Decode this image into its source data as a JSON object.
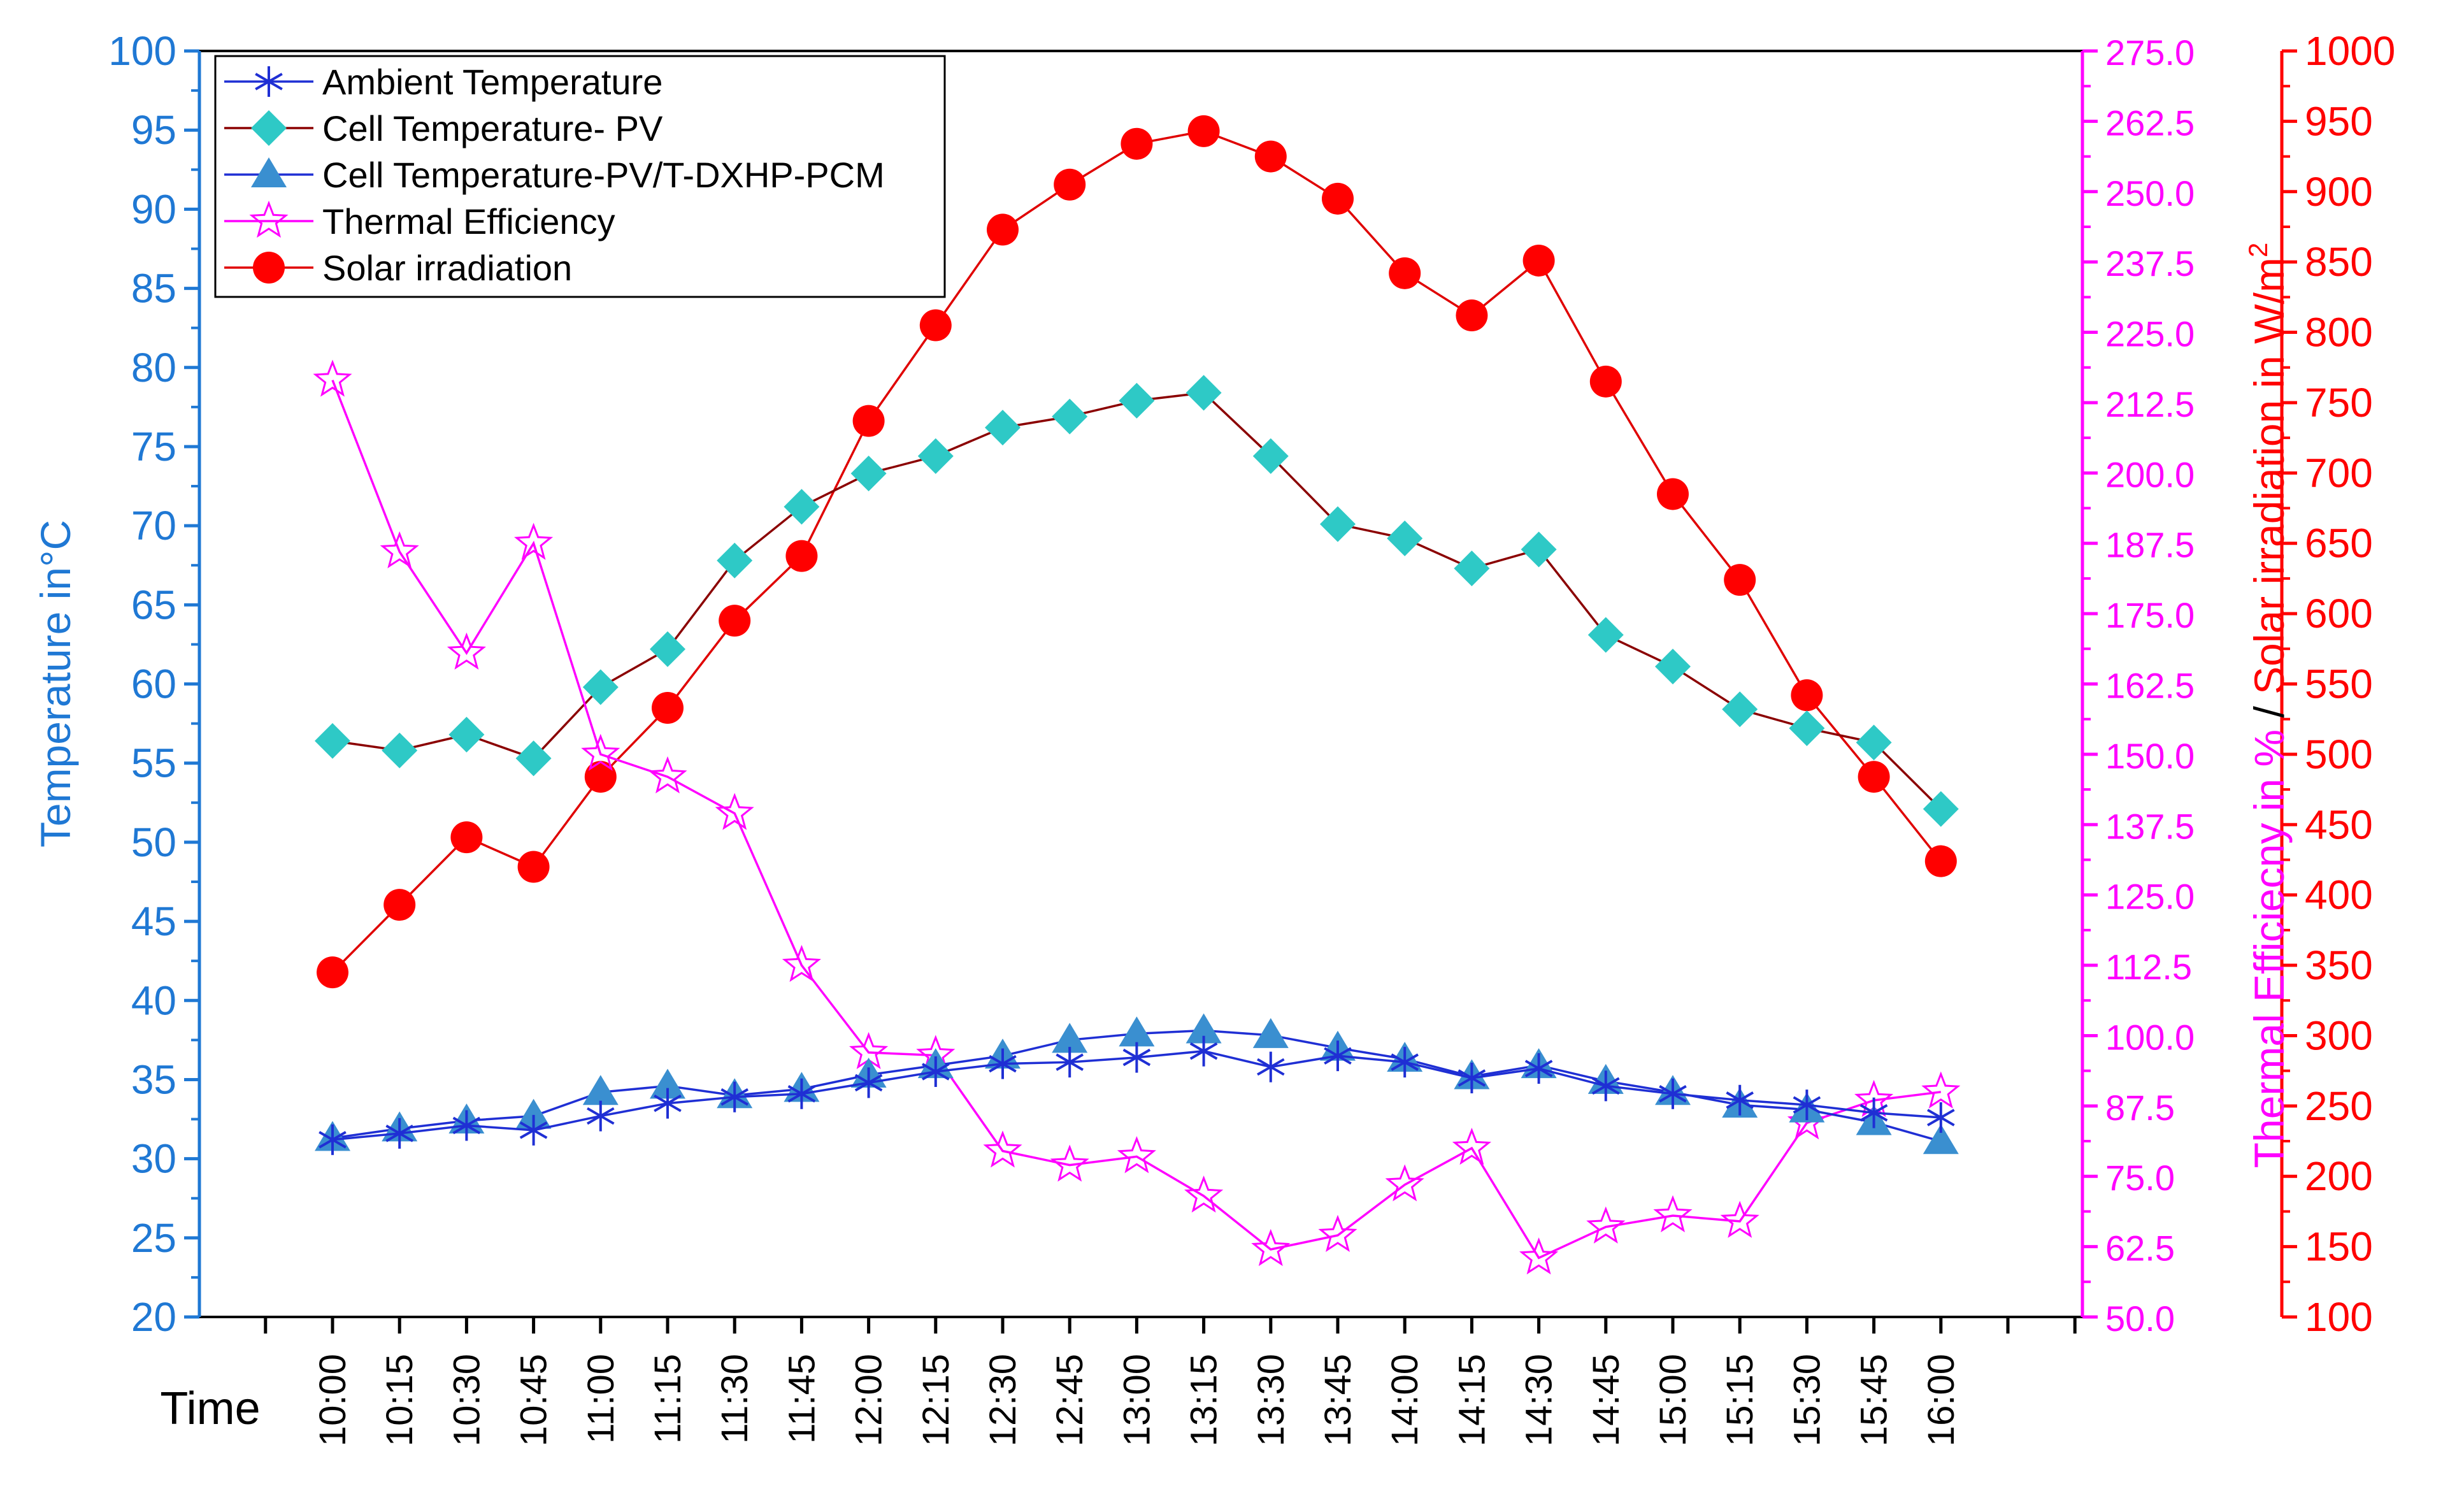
{
  "chart_data": {
    "type": "line",
    "categories": [
      "10:00",
      "10:15",
      "10:30",
      "10:45",
      "11:00",
      "11:15",
      "11:30",
      "11:45",
      "12:00",
      "12:15",
      "12:30",
      "12:45",
      "13:00",
      "13:15",
      "13:30",
      "13:45",
      "14:00",
      "14:15",
      "14:30",
      "14:45",
      "15:00",
      "15:15",
      "15:30",
      "15:45",
      "16:00"
    ],
    "xlabel": "Time",
    "axes": {
      "left": {
        "label": "Temperature in°C",
        "min": 20,
        "max": 100,
        "step": 5,
        "decimals": 0,
        "color": "#1f78d4"
      },
      "middle": {
        "label": "Thermal Efficiecny in %",
        "min": 50,
        "max": 275,
        "step": 12.5,
        "decimals": 1,
        "color": "#ff00ff"
      },
      "right": {
        "label_prefix": "Solar irradiation in W/m",
        "label_sup": "2",
        "min": 100,
        "max": 1000,
        "step": 50,
        "decimals": 0,
        "color": "#ff0000"
      },
      "separator": "/"
    },
    "series": [
      {
        "name": "Ambient Temperature",
        "axis": "left",
        "marker": "asterisk",
        "color": "#1f2fd4",
        "line_color": "#1f2fd4",
        "values": [
          31.2,
          31.6,
          32.1,
          31.8,
          32.7,
          33.5,
          33.9,
          34.1,
          34.8,
          35.5,
          36.0,
          36.1,
          36.4,
          36.8,
          35.8,
          36.5,
          36.1,
          35.1,
          35.7,
          34.6,
          34.1,
          33.7,
          33.4,
          32.9,
          32.6
        ]
      },
      {
        "name": "Cell Temperature- PV",
        "axis": "left",
        "marker": "diamond",
        "color": "#2ec9c6",
        "line_color": "#8b0000",
        "values": [
          56.4,
          55.8,
          56.8,
          55.3,
          59.8,
          62.2,
          67.8,
          71.2,
          73.3,
          74.4,
          76.2,
          76.9,
          77.9,
          78.4,
          74.4,
          70.1,
          69.2,
          67.3,
          68.5,
          63.1,
          61.1,
          58.4,
          57.2,
          56.3,
          52.1
        ]
      },
      {
        "name": "Cell Temperature-PV/T-DXHP-PCM",
        "axis": "left",
        "marker": "triangle",
        "color": "#3a8fd0",
        "line_color": "#1f2fd4",
        "values": [
          31.3,
          31.9,
          32.4,
          32.7,
          34.2,
          34.6,
          34.0,
          34.4,
          35.3,
          35.9,
          36.5,
          37.5,
          37.9,
          38.1,
          37.8,
          37.0,
          36.3,
          35.2,
          35.9,
          34.9,
          34.2,
          33.4,
          33.1,
          32.3,
          31.1
        ]
      },
      {
        "name": "Thermal Efficiency",
        "axis": "middle",
        "marker": "star",
        "color": "#ff00ff",
        "line_color": "#ff00ff",
        "values": [
          216.5,
          186.0,
          168.0,
          187.5,
          150.0,
          146.0,
          139.5,
          112.5,
          97.0,
          96.5,
          79.5,
          77.0,
          78.5,
          71.5,
          62.0,
          64.5,
          73.5,
          80.0,
          60.5,
          66.0,
          68.0,
          67.0,
          84.5,
          88.5,
          90.0
        ]
      },
      {
        "name": "Solar irradiation",
        "axis": "right",
        "marker": "circle",
        "color": "#ff0000",
        "line_color": "#e00000",
        "values": [
          345,
          393,
          441,
          420,
          484,
          533,
          595,
          641,
          737,
          805,
          873,
          905,
          934,
          943,
          925,
          895,
          842,
          812,
          851,
          765,
          685,
          624,
          542,
          484,
          424
        ]
      }
    ]
  }
}
